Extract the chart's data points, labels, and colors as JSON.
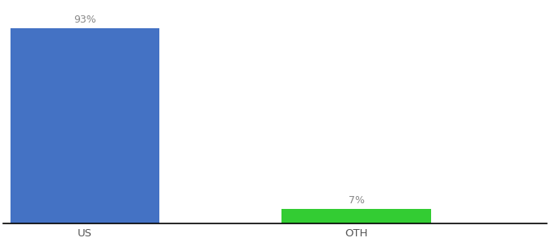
{
  "categories": [
    "US",
    "OTH"
  ],
  "values": [
    93,
    7
  ],
  "bar_colors": [
    "#4472c4",
    "#33cc33"
  ],
  "labels": [
    "93%",
    "7%"
  ],
  "ylim": [
    0,
    105
  ],
  "background_color": "#ffffff",
  "label_fontsize": 9,
  "tick_fontsize": 9.5,
  "bar_width": 0.55,
  "xlim": [
    -0.3,
    1.7
  ],
  "label_color": "#888888"
}
